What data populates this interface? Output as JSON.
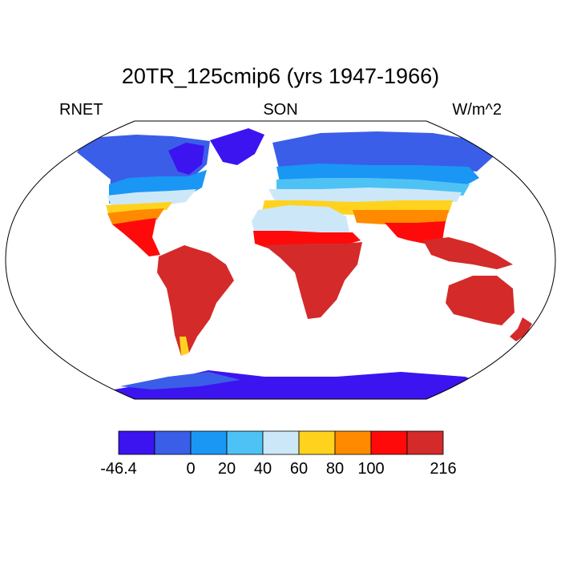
{
  "title": "20TR_125cmip6 (yrs 1947-1966)",
  "left_label": "RNET",
  "center_label": "SON",
  "right_label": "W/m^2",
  "colorbar": {
    "colors": [
      "#3c14f0",
      "#3a5ee8",
      "#1a96f5",
      "#4ec2f4",
      "#cce8f8",
      "#ffd21e",
      "#ff8a00",
      "#ff0a0a",
      "#d42a2a"
    ],
    "labels": [
      {
        "text": "-46.4",
        "index": 0
      },
      {
        "text": "0",
        "index": 2
      },
      {
        "text": "20",
        "index": 3
      },
      {
        "text": "40",
        "index": 4
      },
      {
        "text": "60",
        "index": 5
      },
      {
        "text": "80",
        "index": 6
      },
      {
        "text": "100",
        "index": 7
      },
      {
        "text": "216",
        "index": 9
      }
    ]
  }
}
